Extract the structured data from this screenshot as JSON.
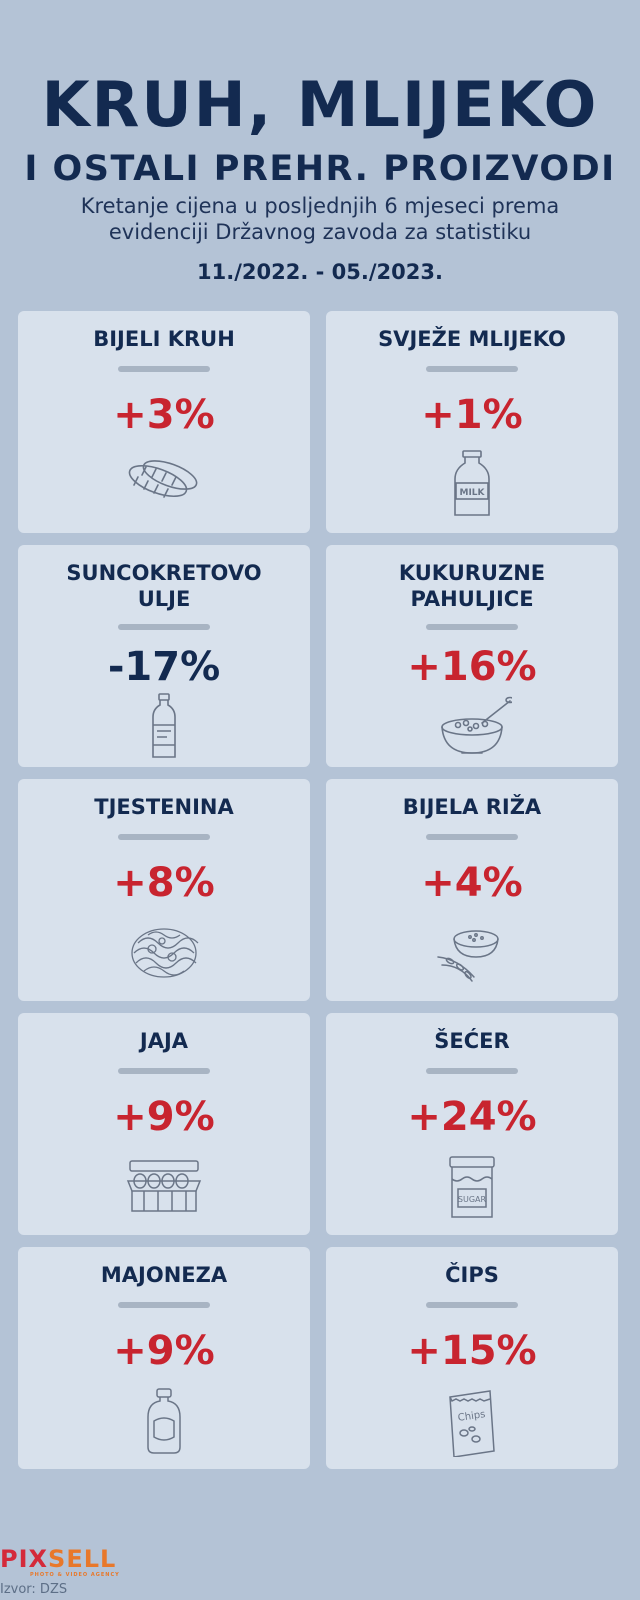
{
  "header": {
    "title_line1": "KRUH, MLIJEKO",
    "title_line2": "I OSTALI PREHR. PROIZVODI",
    "subtitle_line1": "Kretanje cijena u posljednjih 6 mjeseci prema",
    "subtitle_line2": "evidenciji Državnog zavoda za statistiku",
    "period": "11./2022. - 05./2023."
  },
  "cards": [
    {
      "name1": "BIJELI KRUH",
      "name2": "",
      "change": "+3%",
      "icon": "bread-icon"
    },
    {
      "name1": "SVJEŽE MLIJEKO",
      "name2": "",
      "change": "+1%",
      "icon": "milk-bottle-icon",
      "icon_text": "MILK"
    },
    {
      "name1": "SUNCOKRETOVO",
      "name2": "ULJE",
      "change": "-17%",
      "icon": "oil-bottle-icon"
    },
    {
      "name1": "KUKURUZNE",
      "name2": "PAHULJICE",
      "change": "+16%",
      "icon": "cereal-bowl-icon"
    },
    {
      "name1": "TJESTENINA",
      "name2": "",
      "change": "+8%",
      "icon": "pasta-icon"
    },
    {
      "name1": "BIJELA RIŽA",
      "name2": "",
      "change": "+4%",
      "icon": "rice-bowl-icon"
    },
    {
      "name1": "JAJA",
      "name2": "",
      "change": "+9%",
      "icon": "egg-carton-icon"
    },
    {
      "name1": "ŠEĆER",
      "name2": "",
      "change": "+24%",
      "icon": "sugar-jar-icon",
      "icon_text": "SUGAR"
    },
    {
      "name1": "MAJONEZA",
      "name2": "",
      "change": "+9%",
      "icon": "mayonnaise-bottle-icon"
    },
    {
      "name1": "ČIPS",
      "name2": "",
      "change": "+15%",
      "icon": "chips-bag-icon",
      "icon_text": "Chips"
    }
  ],
  "footer": {
    "logo_part1": "PIX",
    "logo_part2": "SELL",
    "tagline": "PHOTO & VIDEO AGENCY",
    "source": "Izvor: DZS"
  },
  "colors": {
    "background": "#b4c3d6",
    "card": "#d8e1ec",
    "navy": "#132a50",
    "increase_red": "#c8242f"
  }
}
